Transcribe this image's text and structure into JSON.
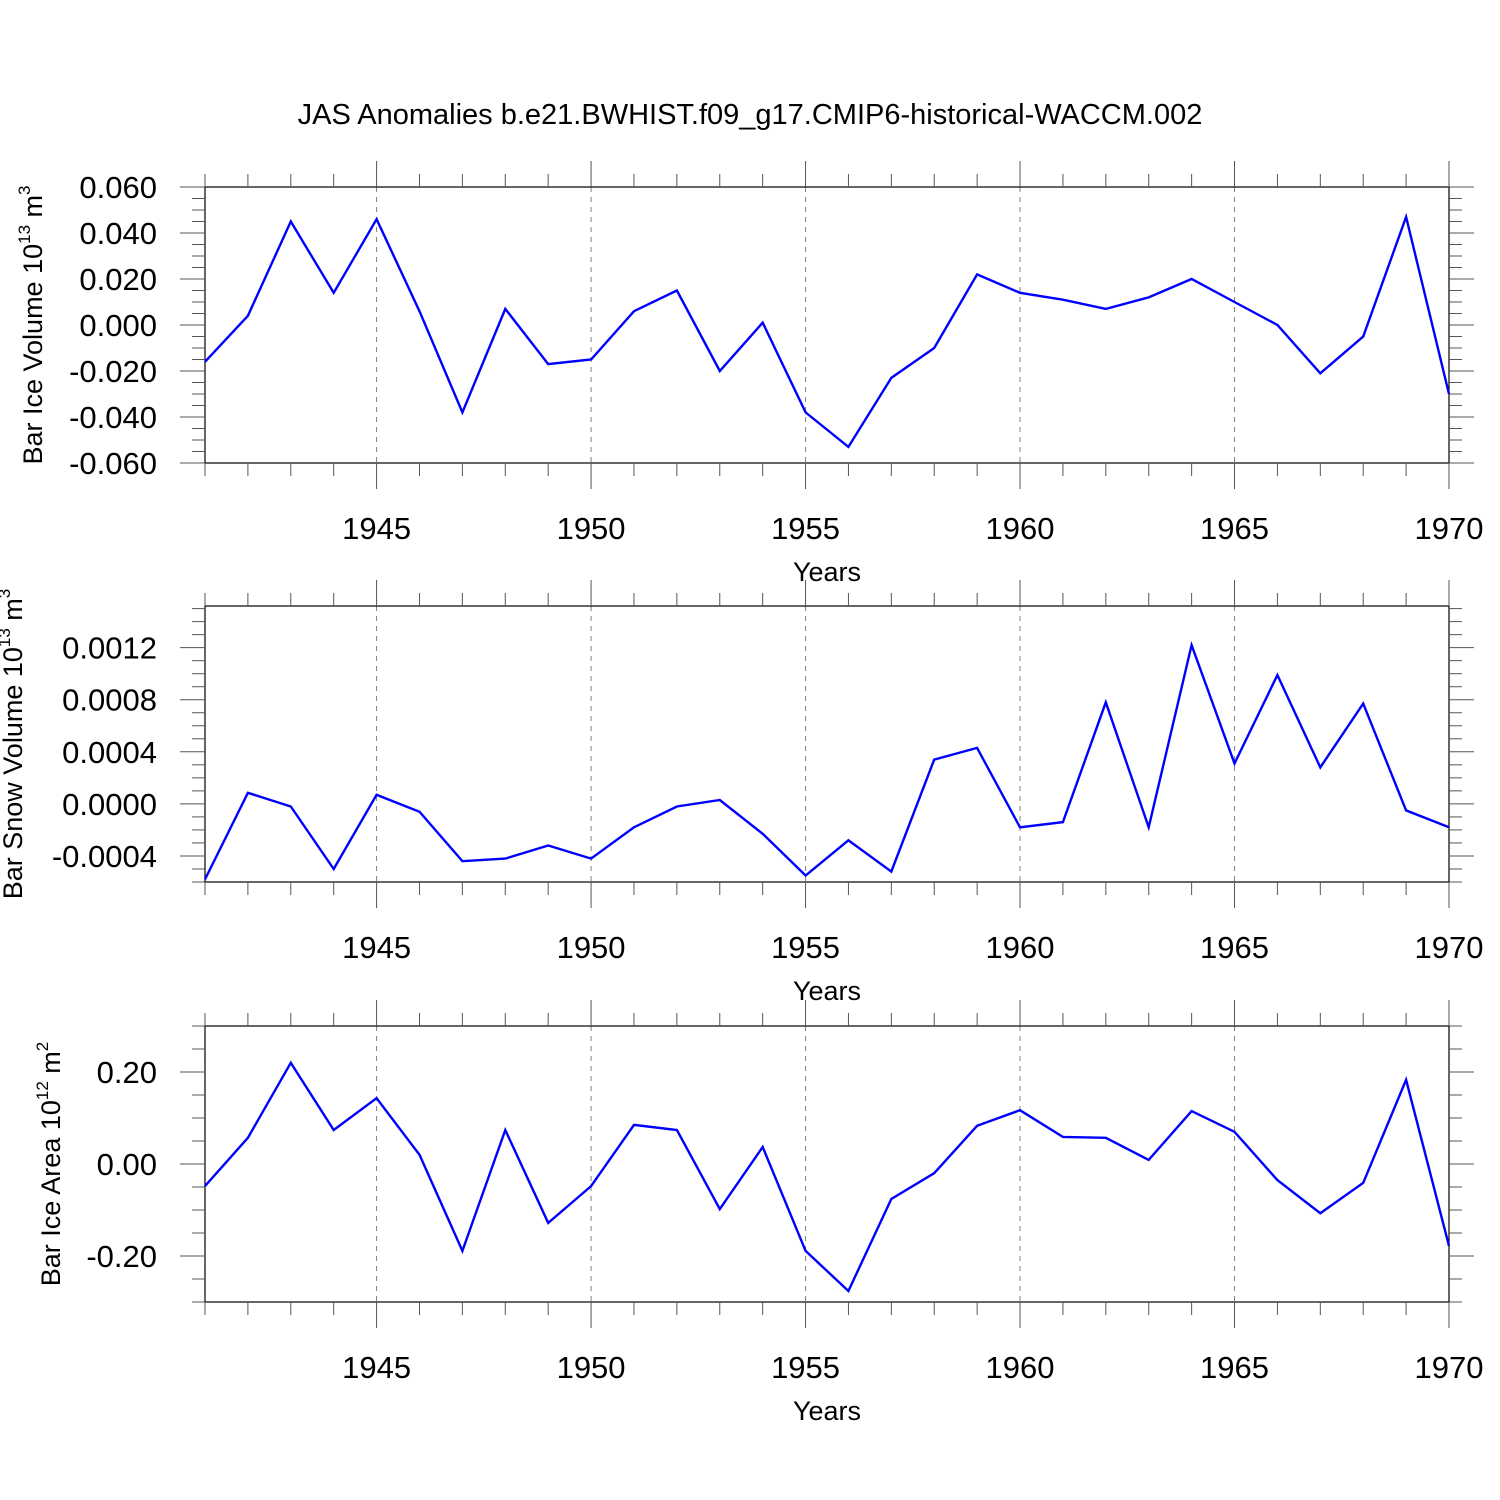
{
  "title": "JAS Anomalies b.e21.BWHIST.f09_g17.CMIP6-historical-WACCM.002",
  "colors": {
    "line": "#0000ff",
    "axis": "#000000",
    "grid": "#808080"
  },
  "chart_data": [
    {
      "type": "line",
      "ylabel": "Bar Ice Volume 10",
      "ylabel_exp": "13",
      "ylabel_unit": " m",
      "ylabel_unit_exp": "3",
      "xlabel": "Years",
      "xlim": [
        1941,
        1970
      ],
      "ylim": [
        -0.06,
        0.06
      ],
      "xticks": [
        1945,
        1950,
        1955,
        1960,
        1965,
        1970
      ],
      "yticks": [
        -0.06,
        -0.04,
        -0.02,
        0.0,
        0.02,
        0.04,
        0.06
      ],
      "ytick_labels": [
        "-0.060",
        "-0.040",
        "-0.020",
        "0.000",
        "0.020",
        "0.040",
        "0.060"
      ],
      "y_minor_step": 0.005,
      "grid": "vertical dashed at major x ticks",
      "x": [
        1941,
        1942,
        1943,
        1944,
        1945,
        1946,
        1947,
        1948,
        1949,
        1950,
        1951,
        1952,
        1953,
        1954,
        1955,
        1956,
        1957,
        1958,
        1959,
        1960,
        1961,
        1962,
        1963,
        1964,
        1965,
        1966,
        1967,
        1968,
        1969,
        1970
      ],
      "values": [
        -0.016,
        0.004,
        0.045,
        0.014,
        0.046,
        0.006,
        -0.038,
        0.007,
        -0.017,
        -0.015,
        0.006,
        0.015,
        -0.02,
        0.001,
        -0.038,
        -0.053,
        -0.023,
        -0.01,
        0.022,
        0.014,
        0.011,
        0.007,
        0.012,
        0.02,
        0.01,
        0.0,
        -0.021,
        -0.005,
        0.047,
        -0.03
      ]
    },
    {
      "type": "line",
      "ylabel": "Bar Snow Volume 10",
      "ylabel_exp": "13",
      "ylabel_unit": " m",
      "ylabel_unit_exp": "3",
      "xlabel": "Years",
      "xlim": [
        1941,
        1970
      ],
      "ylim": [
        -0.0006,
        0.00152
      ],
      "xticks": [
        1945,
        1950,
        1955,
        1960,
        1965,
        1970
      ],
      "yticks": [
        -0.0004,
        0.0,
        0.0004,
        0.0008,
        0.0012
      ],
      "ytick_labels": [
        "-0.0004",
        "0.0000",
        "0.0004",
        "0.0008",
        "0.0012"
      ],
      "y_minor_step": 0.0001,
      "grid": "vertical dashed at major x ticks",
      "x": [
        1941,
        1942,
        1943,
        1944,
        1945,
        1946,
        1947,
        1948,
        1949,
        1950,
        1951,
        1952,
        1953,
        1954,
        1955,
        1956,
        1957,
        1958,
        1959,
        1960,
        1961,
        1962,
        1963,
        1964,
        1965,
        1966,
        1967,
        1968,
        1969,
        1970
      ],
      "values": [
        -0.00058,
        8.5e-05,
        -2e-05,
        -0.0005,
        7e-05,
        -6e-05,
        -0.00044,
        -0.00042,
        -0.00032,
        -0.00042,
        -0.00018,
        -2e-05,
        3e-05,
        -0.00023,
        -0.00055,
        -0.00028,
        -0.00052,
        0.00034,
        0.00043,
        -0.00018,
        -0.00014,
        0.00078,
        -0.00018,
        0.00122,
        0.00031,
        0.00099,
        0.00028,
        0.00077,
        -5e-05,
        -0.00018
      ]
    },
    {
      "type": "line",
      "ylabel": "Bar Ice Area 10",
      "ylabel_exp": "12",
      "ylabel_unit": " m",
      "ylabel_unit_exp": "2",
      "xlabel": "Years",
      "xlim": [
        1941,
        1970
      ],
      "ylim": [
        -0.3,
        0.3
      ],
      "xticks": [
        1945,
        1950,
        1955,
        1960,
        1965,
        1970
      ],
      "yticks": [
        -0.2,
        0.0,
        0.2
      ],
      "ytick_labels": [
        "-0.20",
        "0.00",
        "0.20"
      ],
      "y_minor_step": 0.05,
      "grid": "vertical dashed at major x ticks",
      "x": [
        1941,
        1942,
        1943,
        1944,
        1945,
        1946,
        1947,
        1948,
        1949,
        1950,
        1951,
        1952,
        1953,
        1954,
        1955,
        1956,
        1957,
        1958,
        1959,
        1960,
        1961,
        1962,
        1963,
        1964,
        1965,
        1966,
        1967,
        1968,
        1969,
        1970
      ],
      "values": [
        -0.048,
        0.057,
        0.22,
        0.074,
        0.143,
        0.02,
        -0.189,
        0.074,
        -0.128,
        -0.048,
        0.085,
        0.074,
        -0.098,
        0.037,
        -0.189,
        -0.276,
        -0.076,
        -0.02,
        0.083,
        0.117,
        0.059,
        0.057,
        0.009,
        0.115,
        0.07,
        -0.035,
        -0.107,
        -0.041,
        0.183,
        -0.178
      ]
    }
  ]
}
